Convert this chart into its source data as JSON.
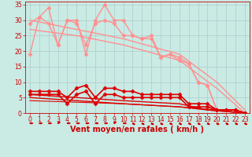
{
  "bg_color": "#caeae4",
  "grid_color": "#aacccc",
  "xlabel": "Vent moyen/en rafales ( km/h )",
  "xlim": [
    -0.5,
    23.5
  ],
  "ylim": [
    0,
    36
  ],
  "yticks": [
    0,
    5,
    10,
    15,
    20,
    25,
    30,
    35
  ],
  "xticks": [
    0,
    1,
    2,
    3,
    4,
    5,
    6,
    7,
    8,
    9,
    10,
    11,
    12,
    13,
    14,
    15,
    16,
    17,
    18,
    19,
    20,
    21,
    22,
    23
  ],
  "lines": [
    {
      "x": [
        0,
        1,
        2,
        3,
        4,
        5,
        6,
        7,
        8,
        9,
        10,
        11,
        12,
        13,
        14,
        15,
        16,
        17,
        18,
        19,
        20,
        21,
        22,
        23
      ],
      "y": [
        19,
        31,
        34,
        22,
        30,
        30,
        19,
        30,
        35,
        30,
        30,
        25,
        24,
        25,
        18,
        19,
        18,
        16,
        10,
        9,
        1,
        1,
        1,
        0
      ],
      "color": "#ff9090",
      "lw": 1.0,
      "marker": "D",
      "ms": 2.5
    },
    {
      "x": [
        0,
        1,
        2,
        3,
        4,
        5,
        6,
        7,
        8,
        9,
        10,
        11,
        12,
        13,
        14,
        15,
        16,
        17,
        18,
        19,
        20,
        21,
        22,
        23
      ],
      "y": [
        29,
        31,
        29,
        22,
        30,
        29,
        22,
        29,
        30,
        29,
        25,
        25,
        24,
        24,
        18,
        19,
        17,
        16,
        10,
        9,
        1,
        1,
        1,
        0
      ],
      "color": "#ff9090",
      "lw": 1.0,
      "marker": "D",
      "ms": 2.5
    },
    {
      "x": [
        0,
        5,
        10,
        16,
        20,
        23
      ],
      "y": [
        30,
        27,
        24,
        19,
        10,
        1
      ],
      "color": "#ff9090",
      "lw": 1.0,
      "marker": null,
      "ms": 0
    },
    {
      "x": [
        0,
        5,
        10,
        16,
        20,
        23
      ],
      "y": [
        27,
        25,
        22,
        17,
        8,
        0
      ],
      "color": "#ff9090",
      "lw": 1.0,
      "marker": null,
      "ms": 0
    },
    {
      "x": [
        0,
        1,
        2,
        3,
        4,
        5,
        6,
        7,
        8,
        9,
        10,
        11,
        12,
        13,
        14,
        15,
        16,
        17,
        18,
        19,
        20,
        21,
        22,
        23
      ],
      "y": [
        7,
        7,
        7,
        7,
        5,
        8,
        9,
        5,
        8,
        8,
        7,
        7,
        6,
        6,
        6,
        6,
        6,
        3,
        3,
        3,
        1,
        1,
        1,
        0
      ],
      "color": "#dd0000",
      "lw": 1.2,
      "marker": "D",
      "ms": 2.5
    },
    {
      "x": [
        0,
        1,
        2,
        3,
        4,
        5,
        6,
        7,
        8,
        9,
        10,
        11,
        12,
        13,
        14,
        15,
        16,
        17,
        18,
        19,
        20,
        21,
        22,
        23
      ],
      "y": [
        6,
        6,
        6,
        6,
        3,
        6,
        7,
        3,
        6,
        6,
        5,
        5,
        5,
        5,
        5,
        5,
        5,
        2,
        2,
        2,
        1,
        1,
        1,
        0
      ],
      "color": "#dd0000",
      "lw": 1.2,
      "marker": "D",
      "ms": 2.5
    },
    {
      "x": [
        0,
        5,
        10,
        16,
        19,
        23
      ],
      "y": [
        6,
        5,
        4,
        3,
        1,
        0
      ],
      "color": "#dd0000",
      "lw": 1.0,
      "marker": null,
      "ms": 0
    },
    {
      "x": [
        0,
        5,
        10,
        16,
        19,
        23
      ],
      "y": [
        5,
        4,
        3,
        2,
        1,
        0
      ],
      "color": "#dd0000",
      "lw": 1.0,
      "marker": null,
      "ms": 0
    },
    {
      "x": [
        0,
        10,
        16,
        20,
        23
      ],
      "y": [
        4,
        3,
        2,
        1,
        0
      ],
      "color": "#dd0000",
      "lw": 0.8,
      "marker": null,
      "ms": 0
    }
  ],
  "arrows": {
    "color": "#cc0000",
    "angles_deg": [
      0,
      0,
      0,
      45,
      0,
      0,
      0,
      0,
      0,
      45,
      0,
      -45,
      -45,
      -45,
      -45,
      -45,
      -45,
      -45,
      -45,
      -45,
      -45,
      -45,
      -45,
      -45
    ]
  },
  "xlabel_fontsize": 7,
  "tick_fontsize": 5.5,
  "tick_color": "#cc0000",
  "xlabel_color": "#cc0000",
  "xlabel_fontweight": "bold"
}
